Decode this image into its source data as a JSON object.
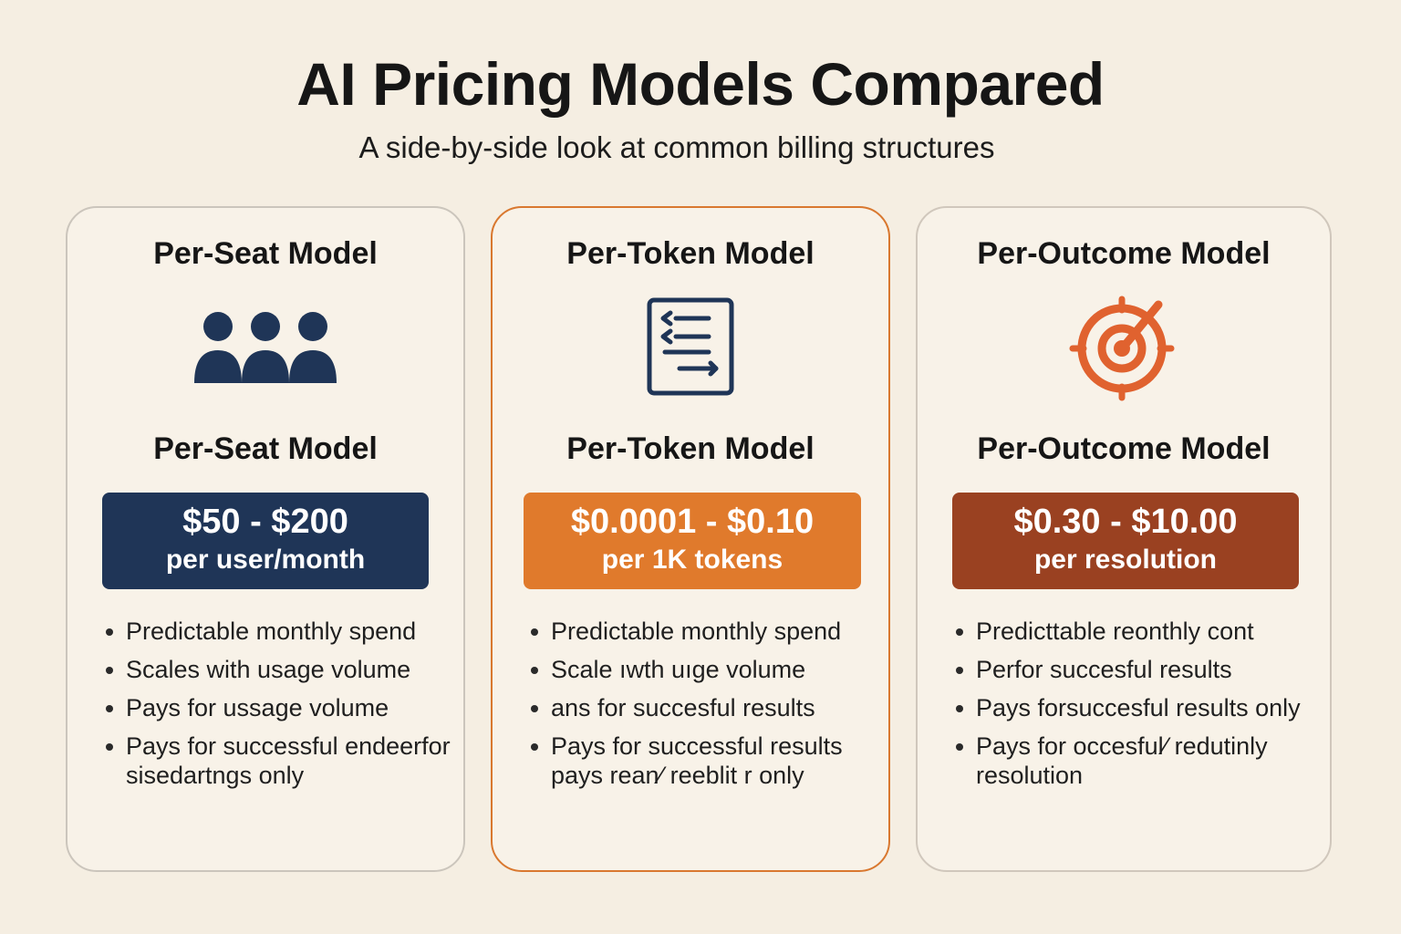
{
  "title": "AI Pricing Models Compared",
  "subtitle": "A side-by-side look at common billing structures",
  "colors": {
    "background": "#f5eee2",
    "navy": "#1f3557",
    "orange": "#e07a2c",
    "rust": "#9a4121",
    "target": "#e0622f"
  },
  "cards": [
    {
      "heading": "Per-Seat Model",
      "icon": "users-icon",
      "subheading": "Per-Seat Model",
      "price_range": "$50 - $200",
      "price_unit": "per user/month",
      "features": [
        "Predictable monthly spend",
        "Scales with usage volume",
        "Pays for ussage volume",
        "Pays for successful endeerfor sisedartngs only"
      ]
    },
    {
      "heading": "Per-Token Model",
      "icon": "token-document-icon",
      "subheading": "Per-Token Model",
      "price_range": "$0.0001 - $0.10",
      "price_unit": "per 1K tokens",
      "features": [
        "Predictable monthly spend",
        "Scale ıwth uıge volume",
        "ans for succesful results",
        "Pays for successful results pays rean⁄ reeblit r only"
      ]
    },
    {
      "heading": "Per-Outcome Model",
      "icon": "target-icon",
      "subheading": "Per-Outcome Model",
      "price_range": "$0.30 - $10.00",
      "price_unit": "per resolution",
      "features": [
        "Predicttable reonthly cont",
        "Perfor succesful results",
        "Pays forsuccesful results only",
        "Pays for occesful⁄ redutinly resolution"
      ]
    }
  ]
}
